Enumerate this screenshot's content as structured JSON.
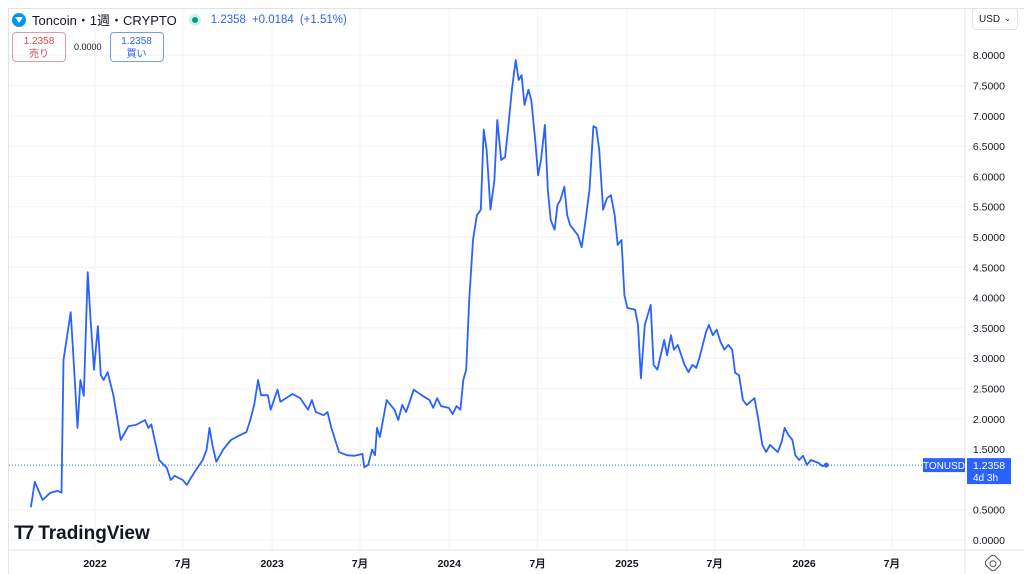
{
  "header": {
    "symbol_title": "Toncoin・1週・CRYPTO",
    "price": "1.2358",
    "change": "+0.0184",
    "change_pct": "(+1.51%)",
    "logo_icon": "toncoin-logo-icon",
    "market_status_icon": "market-open-dot-icon"
  },
  "quotes": {
    "sell_price": "1.2358",
    "sell_label": "売り",
    "spread": "0.0000",
    "buy_price": "1.2358",
    "buy_label": "買い"
  },
  "currency": {
    "label": "USD",
    "icon": "chevron-down-icon"
  },
  "brand": {
    "name": "TradingView"
  },
  "price_label": {
    "symbol": "TONUSD",
    "price": "1.2358",
    "countdown": "4d 3h"
  },
  "colors": {
    "line": "#2962ff",
    "label_bg": "#2962ff",
    "sell": "#e0454f",
    "buy": "#2962ff",
    "grid": "#f0f3fa"
  },
  "chart_data": {
    "type": "line",
    "title": "",
    "xlabel": "",
    "ylabel": "",
    "grid": true,
    "legend": "none",
    "ylim": [
      0,
      8.2
    ],
    "y_ticks": [
      "0.0000",
      "0.5000",
      "1.5000",
      "2.0000",
      "2.5000",
      "3.0000",
      "3.5000",
      "4.0000",
      "4.5000",
      "5.0000",
      "5.5000",
      "6.0000",
      "6.5000",
      "7.0000",
      "7.5000",
      "8.0000"
    ],
    "x_ticks": [
      {
        "date": "2022-01-01",
        "label": "2022"
      },
      {
        "date": "2022-07-01",
        "label": "7月"
      },
      {
        "date": "2023-01-01",
        "label": "2023"
      },
      {
        "date": "2023-07-01",
        "label": "7月"
      },
      {
        "date": "2024-01-01",
        "label": "2024"
      },
      {
        "date": "2024-07-01",
        "label": "7月"
      },
      {
        "date": "2025-01-01",
        "label": "2025"
      },
      {
        "date": "2025-07-01",
        "label": "7月"
      },
      {
        "date": "2026-01-01",
        "label": "2026"
      },
      {
        "date": "2026-07-01",
        "label": "7月"
      }
    ],
    "last_value": 1.2358,
    "series": [
      {
        "points": [
          [
            "2021-08-22",
            0.54
          ],
          [
            "2021-08-30",
            0.96
          ],
          [
            "2021-09-15",
            0.66
          ],
          [
            "2021-10-01",
            0.78
          ],
          [
            "2021-10-16",
            0.81
          ],
          [
            "2021-10-24",
            0.78
          ],
          [
            "2021-10-28",
            2.97
          ],
          [
            "2021-11-12",
            3.76
          ],
          [
            "2021-11-18",
            2.97
          ],
          [
            "2021-11-26",
            1.85
          ],
          [
            "2021-12-02",
            2.64
          ],
          [
            "2021-12-09",
            2.38
          ],
          [
            "2021-12-17",
            4.42
          ],
          [
            "2021-12-23",
            3.63
          ],
          [
            "2021-12-30",
            2.81
          ],
          [
            "2022-01-07",
            3.53
          ],
          [
            "2022-01-13",
            2.72
          ],
          [
            "2022-01-19",
            2.64
          ],
          [
            "2022-01-27",
            2.77
          ],
          [
            "2022-02-08",
            2.39
          ],
          [
            "2022-02-23",
            1.65
          ],
          [
            "2022-03-11",
            1.88
          ],
          [
            "2022-03-27",
            1.9
          ],
          [
            "2022-04-14",
            1.98
          ],
          [
            "2022-04-21",
            1.85
          ],
          [
            "2022-04-27",
            1.91
          ],
          [
            "2022-05-13",
            1.32
          ],
          [
            "2022-05-29",
            1.19
          ],
          [
            "2022-06-06",
            0.99
          ],
          [
            "2022-06-14",
            1.06
          ],
          [
            "2022-07-01",
            0.99
          ],
          [
            "2022-07-09",
            0.91
          ],
          [
            "2022-07-25",
            1.12
          ],
          [
            "2022-08-11",
            1.32
          ],
          [
            "2022-08-19",
            1.49
          ],
          [
            "2022-08-25",
            1.85
          ],
          [
            "2022-08-31",
            1.57
          ],
          [
            "2022-09-08",
            1.29
          ],
          [
            "2022-09-22",
            1.49
          ],
          [
            "2022-10-08",
            1.65
          ],
          [
            "2022-10-24",
            1.72
          ],
          [
            "2022-11-09",
            1.78
          ],
          [
            "2022-11-17",
            1.98
          ],
          [
            "2022-11-25",
            2.23
          ],
          [
            "2022-12-03",
            2.64
          ],
          [
            "2022-12-09",
            2.39
          ],
          [
            "2022-12-23",
            2.39
          ],
          [
            "2022-12-29",
            2.15
          ],
          [
            "2023-01-12",
            2.48
          ],
          [
            "2023-01-18",
            2.28
          ],
          [
            "2023-02-12",
            2.41
          ],
          [
            "2023-02-28",
            2.34
          ],
          [
            "2023-03-16",
            2.15
          ],
          [
            "2023-03-24",
            2.31
          ],
          [
            "2023-04-01",
            2.11
          ],
          [
            "2023-04-17",
            2.06
          ],
          [
            "2023-04-25",
            2.11
          ],
          [
            "2023-05-03",
            1.85
          ],
          [
            "2023-05-19",
            1.45
          ],
          [
            "2023-06-04",
            1.4
          ],
          [
            "2023-06-20",
            1.39
          ],
          [
            "2023-07-06",
            1.42
          ],
          [
            "2023-07-10",
            1.2
          ],
          [
            "2023-07-18",
            1.24
          ],
          [
            "2023-07-26",
            1.49
          ],
          [
            "2023-08-01",
            1.4
          ],
          [
            "2023-08-05",
            1.85
          ],
          [
            "2023-08-11",
            1.7
          ],
          [
            "2023-08-25",
            2.31
          ],
          [
            "2023-09-10",
            2.15
          ],
          [
            "2023-09-18",
            1.98
          ],
          [
            "2023-09-26",
            2.23
          ],
          [
            "2023-10-04",
            2.11
          ],
          [
            "2023-10-20",
            2.48
          ],
          [
            "2023-11-05",
            2.39
          ],
          [
            "2023-11-21",
            2.31
          ],
          [
            "2023-11-29",
            2.18
          ],
          [
            "2023-12-07",
            2.34
          ],
          [
            "2023-12-15",
            2.21
          ],
          [
            "2023-12-31",
            2.18
          ],
          [
            "2024-01-08",
            2.08
          ],
          [
            "2024-01-16",
            2.21
          ],
          [
            "2024-01-24",
            2.15
          ],
          [
            "2024-01-30",
            2.64
          ],
          [
            "2024-02-05",
            2.81
          ],
          [
            "2024-02-11",
            3.96
          ],
          [
            "2024-02-19",
            4.95
          ],
          [
            "2024-02-27",
            5.36
          ],
          [
            "2024-03-06",
            5.45
          ],
          [
            "2024-03-12",
            6.77
          ],
          [
            "2024-03-18",
            6.44
          ],
          [
            "2024-03-26",
            5.45
          ],
          [
            "2024-04-03",
            5.94
          ],
          [
            "2024-04-09",
            6.93
          ],
          [
            "2024-04-17",
            6.27
          ],
          [
            "2024-04-25",
            6.32
          ],
          [
            "2024-05-01",
            6.77
          ],
          [
            "2024-05-09",
            7.43
          ],
          [
            "2024-05-17",
            7.92
          ],
          [
            "2024-05-23",
            7.59
          ],
          [
            "2024-05-29",
            7.67
          ],
          [
            "2024-06-04",
            7.18
          ],
          [
            "2024-06-12",
            7.43
          ],
          [
            "2024-06-18",
            7.26
          ],
          [
            "2024-06-26",
            6.6
          ],
          [
            "2024-07-02",
            6.02
          ],
          [
            "2024-07-08",
            6.27
          ],
          [
            "2024-07-16",
            6.85
          ],
          [
            "2024-07-22",
            5.78
          ],
          [
            "2024-07-28",
            5.28
          ],
          [
            "2024-08-05",
            5.12
          ],
          [
            "2024-08-11",
            5.53
          ],
          [
            "2024-08-17",
            5.61
          ],
          [
            "2024-08-25",
            5.83
          ],
          [
            "2024-08-31",
            5.36
          ],
          [
            "2024-09-06",
            5.2
          ],
          [
            "2024-09-22",
            5.03
          ],
          [
            "2024-09-30",
            4.83
          ],
          [
            "2024-10-08",
            5.28
          ],
          [
            "2024-10-16",
            5.78
          ],
          [
            "2024-10-24",
            6.83
          ],
          [
            "2024-10-30",
            6.8
          ],
          [
            "2024-11-05",
            6.44
          ],
          [
            "2024-11-13",
            5.45
          ],
          [
            "2024-11-21",
            5.64
          ],
          [
            "2024-11-29",
            5.69
          ],
          [
            "2024-12-07",
            5.36
          ],
          [
            "2024-12-13",
            4.87
          ],
          [
            "2024-12-21",
            4.95
          ],
          [
            "2024-12-27",
            4.04
          ],
          [
            "2025-01-02",
            3.83
          ],
          [
            "2025-01-18",
            3.8
          ],
          [
            "2025-01-24",
            3.55
          ],
          [
            "2025-01-30",
            2.67
          ],
          [
            "2025-02-07",
            3.55
          ],
          [
            "2025-02-19",
            3.88
          ],
          [
            "2025-02-25",
            2.89
          ],
          [
            "2025-03-05",
            2.81
          ],
          [
            "2025-03-19",
            3.3
          ],
          [
            "2025-03-25",
            3.05
          ],
          [
            "2025-04-02",
            3.38
          ],
          [
            "2025-04-08",
            3.14
          ],
          [
            "2025-04-16",
            3.22
          ],
          [
            "2025-04-30",
            2.89
          ],
          [
            "2025-05-08",
            2.77
          ],
          [
            "2025-05-16",
            2.89
          ],
          [
            "2025-05-24",
            2.84
          ],
          [
            "2025-06-01",
            3.05
          ],
          [
            "2025-06-13",
            3.43
          ],
          [
            "2025-06-19",
            3.55
          ],
          [
            "2025-06-27",
            3.38
          ],
          [
            "2025-07-05",
            3.47
          ],
          [
            "2025-07-13",
            3.27
          ],
          [
            "2025-07-21",
            3.14
          ],
          [
            "2025-07-29",
            3.22
          ],
          [
            "2025-08-06",
            3.14
          ],
          [
            "2025-08-12",
            2.76
          ],
          [
            "2025-08-20",
            2.72
          ],
          [
            "2025-08-28",
            2.31
          ],
          [
            "2025-09-05",
            2.23
          ],
          [
            "2025-09-21",
            2.34
          ],
          [
            "2025-09-29",
            1.98
          ],
          [
            "2025-10-07",
            1.57
          ],
          [
            "2025-10-15",
            1.45
          ],
          [
            "2025-10-23",
            1.57
          ],
          [
            "2025-11-08",
            1.45
          ],
          [
            "2025-11-16",
            1.62
          ],
          [
            "2025-11-22",
            1.85
          ],
          [
            "2025-11-30",
            1.73
          ],
          [
            "2025-12-08",
            1.65
          ],
          [
            "2025-12-14",
            1.4
          ],
          [
            "2025-12-22",
            1.32
          ],
          [
            "2025-12-30",
            1.39
          ],
          [
            "2026-01-07",
            1.24
          ],
          [
            "2026-01-15",
            1.32
          ],
          [
            "2026-01-31",
            1.27
          ],
          [
            "2026-02-08",
            1.22
          ],
          [
            "2026-02-16",
            1.2358
          ]
        ]
      }
    ]
  }
}
